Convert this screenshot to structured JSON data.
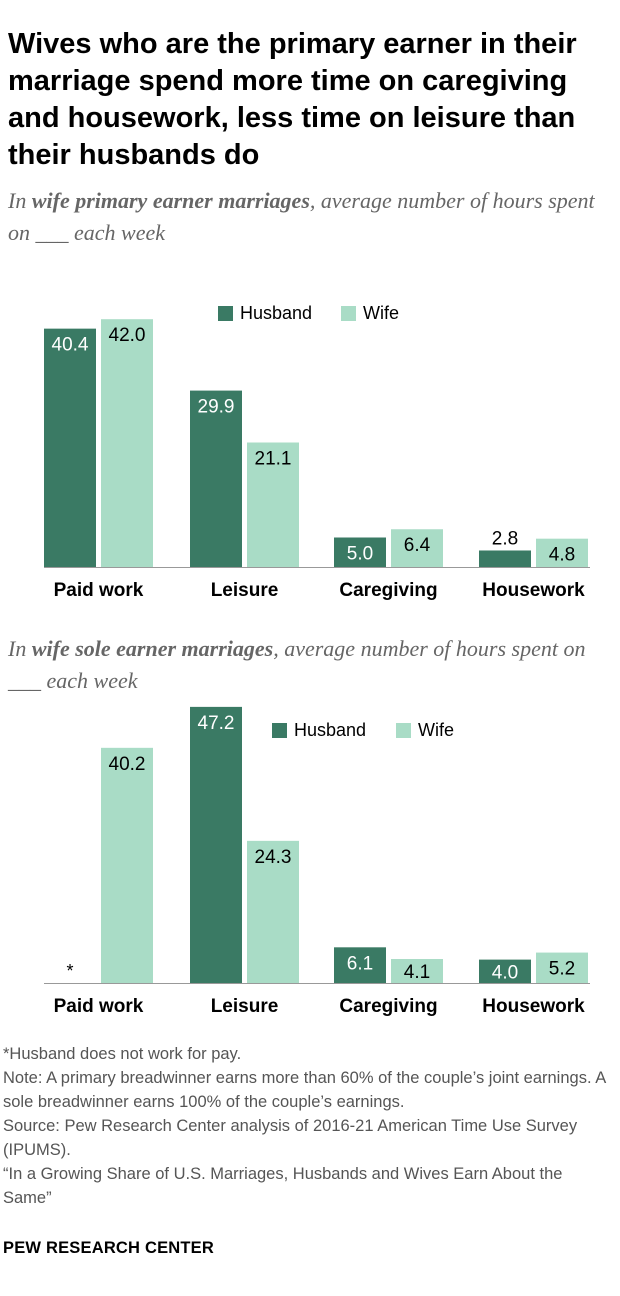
{
  "title": "Wives who are the primary earner in their marriage spend more time on caregiving and housework, less time on leisure than their husbands do",
  "colors": {
    "husband": "#3a7a64",
    "wife": "#a9dcc6",
    "text_gray": "#666666"
  },
  "chart_data": [
    {
      "type": "bar",
      "subtitle": {
        "pre": "In ",
        "emph": "wife primary earner marriages",
        "post": ", average number of hours spent on ___ each week"
      },
      "categories": [
        "Paid work",
        "Leisure",
        "Caregiving",
        "Housework"
      ],
      "series": [
        {
          "name": "Husband",
          "values": [
            40.4,
            29.9,
            5.0,
            2.8
          ],
          "labels": [
            "40.4",
            "29.9",
            "5.0",
            "2.8"
          ]
        },
        {
          "name": "Wife",
          "values": [
            42.0,
            21.1,
            6.4,
            4.8
          ],
          "labels": [
            "42.0",
            "21.1",
            "6.4",
            "4.8"
          ]
        }
      ],
      "legend": "top-right",
      "grid": false
    },
    {
      "type": "bar",
      "subtitle": {
        "pre": "In ",
        "emph": "wife sole earner marriages",
        "post": ", average number of hours spent on ___ each week"
      },
      "categories": [
        "Paid work",
        "Leisure",
        "Caregiving",
        "Housework"
      ],
      "series": [
        {
          "name": "Husband",
          "values": [
            null,
            47.2,
            6.1,
            4.0
          ],
          "labels": [
            "*",
            "47.2",
            "6.1",
            "4.0"
          ]
        },
        {
          "name": "Wife",
          "values": [
            40.2,
            24.3,
            4.1,
            5.2
          ],
          "labels": [
            "40.2",
            "24.3",
            "4.1",
            "5.2"
          ]
        }
      ],
      "legend": "top-right",
      "grid": false
    }
  ],
  "notes": [
    "*Husband does not work for pay.",
    "Note: A primary breadwinner earns more than 60% of the couple’s joint earnings. A sole breadwinner earns 100% of the couple’s earnings.",
    "Source: Pew Research Center analysis of 2016-21 American Time Use Survey (IPUMS).",
    "“In a Growing Share of U.S. Marriages, Husbands and Wives Earn About the Same”"
  ],
  "brand": "PEW RESEARCH CENTER"
}
